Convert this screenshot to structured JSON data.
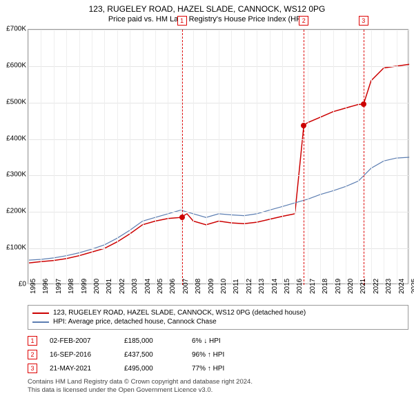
{
  "title": "123, RUGELEY ROAD, HAZEL SLADE, CANNOCK, WS12 0PG",
  "subtitle": "Price paid vs. HM Land Registry's House Price Index (HPI)",
  "chart": {
    "type": "line",
    "ylim": [
      0,
      700000
    ],
    "ytick_step": 100000,
    "y_tick_labels": [
      "£0",
      "£100K",
      "£200K",
      "£300K",
      "£400K",
      "£500K",
      "£600K",
      "£700K"
    ],
    "xlim": [
      1995,
      2025
    ],
    "x_ticks": [
      1995,
      1996,
      1997,
      1998,
      1999,
      2000,
      2001,
      2002,
      2003,
      2004,
      2005,
      2006,
      2007,
      2008,
      2009,
      2010,
      2011,
      2012,
      2013,
      2014,
      2015,
      2016,
      2017,
      2018,
      2019,
      2020,
      2021,
      2022,
      2023,
      2024,
      2025
    ],
    "grid_color": "#e5e5e5",
    "background_color": "#ffffff",
    "series": [
      {
        "name": "123, RUGELEY ROAD, HAZEL SLADE, CANNOCK, WS12 0PG (detached house)",
        "color": "#cc0000",
        "line_width": 1.5,
        "data": [
          [
            1995,
            60000
          ],
          [
            1996,
            64000
          ],
          [
            1997,
            67000
          ],
          [
            1998,
            72000
          ],
          [
            1999,
            80000
          ],
          [
            2000,
            90000
          ],
          [
            2001,
            100000
          ],
          [
            2002,
            118000
          ],
          [
            2003,
            140000
          ],
          [
            2004,
            165000
          ],
          [
            2005,
            175000
          ],
          [
            2006,
            182000
          ],
          [
            2007,
            185000
          ],
          [
            2007.5,
            195000
          ],
          [
            2008,
            175000
          ],
          [
            2009,
            165000
          ],
          [
            2010,
            175000
          ],
          [
            2011,
            170000
          ],
          [
            2012,
            168000
          ],
          [
            2013,
            172000
          ],
          [
            2014,
            180000
          ],
          [
            2015,
            188000
          ],
          [
            2016,
            195000
          ],
          [
            2016.7,
            437500
          ],
          [
            2017,
            445000
          ],
          [
            2018,
            460000
          ],
          [
            2019,
            475000
          ],
          [
            2020,
            485000
          ],
          [
            2021,
            495000
          ],
          [
            2021.4,
            495000
          ],
          [
            2022,
            560000
          ],
          [
            2023,
            595000
          ],
          [
            2024,
            600000
          ],
          [
            2025,
            605000
          ]
        ]
      },
      {
        "name": "HPI: Average price, detached house, Cannock Chase",
        "color": "#5b7db1",
        "line_width": 1.2,
        "data": [
          [
            1995,
            68000
          ],
          [
            1996,
            70000
          ],
          [
            1997,
            74000
          ],
          [
            1998,
            80000
          ],
          [
            1999,
            88000
          ],
          [
            2000,
            98000
          ],
          [
            2001,
            110000
          ],
          [
            2002,
            128000
          ],
          [
            2003,
            150000
          ],
          [
            2004,
            175000
          ],
          [
            2005,
            185000
          ],
          [
            2006,
            195000
          ],
          [
            2007,
            205000
          ],
          [
            2008,
            195000
          ],
          [
            2009,
            185000
          ],
          [
            2010,
            195000
          ],
          [
            2011,
            192000
          ],
          [
            2012,
            190000
          ],
          [
            2013,
            195000
          ],
          [
            2014,
            205000
          ],
          [
            2015,
            215000
          ],
          [
            2016,
            225000
          ],
          [
            2017,
            235000
          ],
          [
            2018,
            248000
          ],
          [
            2019,
            258000
          ],
          [
            2020,
            270000
          ],
          [
            2021,
            285000
          ],
          [
            2022,
            320000
          ],
          [
            2023,
            340000
          ],
          [
            2024,
            348000
          ],
          [
            2025,
            350000
          ]
        ]
      }
    ],
    "markers": [
      {
        "num": "1",
        "x": 2007.1,
        "dot_y": 185000
      },
      {
        "num": "2",
        "x": 2016.7,
        "dot_y": 437500
      },
      {
        "num": "3",
        "x": 2021.4,
        "dot_y": 495000
      }
    ]
  },
  "legend": {
    "items": [
      {
        "color": "#cc0000",
        "label": "123, RUGELEY ROAD, HAZEL SLADE, CANNOCK, WS12 0PG (detached house)"
      },
      {
        "color": "#5b7db1",
        "label": "HPI: Average price, detached house, Cannock Chase"
      }
    ]
  },
  "events": [
    {
      "num": "1",
      "date": "02-FEB-2007",
      "price": "£185,000",
      "delta": "6% ↓ HPI"
    },
    {
      "num": "2",
      "date": "16-SEP-2016",
      "price": "£437,500",
      "delta": "96% ↑ HPI"
    },
    {
      "num": "3",
      "date": "21-MAY-2021",
      "price": "£495,000",
      "delta": "77% ↑ HPI"
    }
  ],
  "footer_line1": "Contains HM Land Registry data © Crown copyright and database right 2024.",
  "footer_line2": "This data is licensed under the Open Government Licence v3.0."
}
